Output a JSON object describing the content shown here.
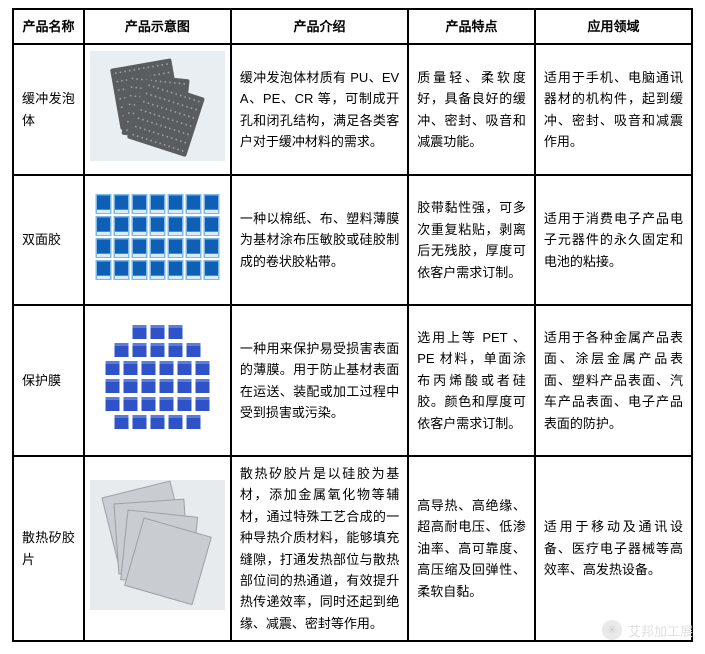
{
  "table": {
    "headers": [
      "产品名称",
      "产品示意图",
      "产品介绍",
      "产品特点",
      "应用领域"
    ],
    "rows": [
      {
        "name": "缓冲发泡体",
        "image_key": "foam",
        "intro": "缓冲发泡体材质有 PU、EVA、PE、CR 等，可制成开孔和闭孔结构，满足各类客户对于缓冲材料的需求。",
        "feature": "质量轻、柔软度好，具备良好的缓冲、密封、吸音和减震功能。",
        "application": "适用于手机、电脑通讯器材的机构件，起到缓冲、密封、吸音和减震作用。"
      },
      {
        "name": "双面胶",
        "image_key": "tape",
        "intro": "一种以棉纸、布、塑料薄膜为基材涂布压敏胶或硅胶制成的卷状胶粘带。",
        "feature": "胶带黏性强，可多次重复粘贴，剥离后无残胶，厚度可依客户需求订制。",
        "application": "适用于消费电子产品电子元器件的永久固定和电池的粘接。"
      },
      {
        "name": "保护膜",
        "image_key": "film",
        "intro": "一种用来保护易受损害表面的薄膜。用于防止基材表面在运送、装配或加工过程中受到损害或污染。",
        "feature": "选用上等 PET 、 PE 材料，单面涂布丙烯酸或者硅胶。颜色和厚度可依客户需求订制。",
        "application": "适用于各种金属产品表面、涂层金属产品表面、塑料产品表面、汽车产品表面、电子产品表面的防护。"
      },
      {
        "name": "散热矽胶片",
        "image_key": "thermal",
        "intro": "散热矽胶片是以硅胶为基材，添加金属氧化物等辅材，通过特殊工艺合成的一种导热介质材料，能够填充缝隙，打通发热部位与散热部位间的热通道，有效提升热传递效率，同时还起到绝缘、减震、密封等作用。",
        "feature": "高导热、高绝缘、超高耐电压、低渗油率、高可靠度、高压缩及回弹性、柔软自黏。",
        "application": "适用于移动及通讯设备、医疗电子器械等高效率、高发热设备。"
      }
    ]
  },
  "watermark": {
    "text": "艾邦加工展"
  },
  "images": {
    "foam": {
      "bg": "#e9eef3",
      "sheet": "#5a5d60",
      "dot": "#9da0a3",
      "rows": 7,
      "cols": 12
    },
    "tape": {
      "bg": "#ffffff",
      "piece_main": "#0f5fb7",
      "piece_edge": "#7db7e8",
      "tab": "#d7ebfb",
      "rows": 4,
      "cols": 7
    },
    "film": {
      "bg": "#e8ebee",
      "sheet": "#c9cdd1",
      "edge": "#9aa0a6"
    },
    "thermal": {
      "bg": "#ffffff",
      "piece": "#2f53c7",
      "piece_light": "#5a7de0",
      "rows": [
        3,
        5,
        6,
        6,
        6,
        5
      ]
    }
  }
}
